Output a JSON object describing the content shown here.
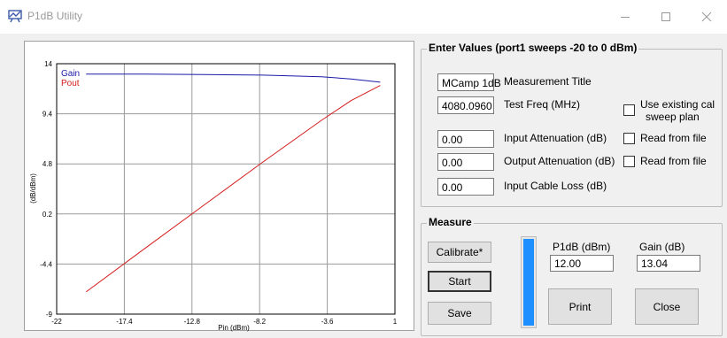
{
  "window": {
    "title": "P1dB Utility",
    "icons": {
      "app": "chart-app-icon",
      "minimize": "minimize-icon",
      "maximize": "maximize-icon",
      "close": "close-icon"
    }
  },
  "chart_data": {
    "type": "line",
    "title": "",
    "xlabel": "Pin (dBm)",
    "ylabel": "(dB/dBm)",
    "xlim": [
      -22,
      1
    ],
    "ylim": [
      -9,
      14
    ],
    "x_ticks": [
      "-22",
      "-17.4",
      "-12.8",
      "-8.2",
      "-3.6",
      "1"
    ],
    "y_ticks": [
      "14",
      "9.4",
      "4.8",
      "0.2",
      "-4.4",
      "-9"
    ],
    "grid": true,
    "legend_position": "top-left",
    "series": [
      {
        "name": "Gain",
        "color": "#1a1aa8",
        "x": [
          -20,
          -16,
          -12,
          -8,
          -4,
          -2,
          0
        ],
        "y": [
          13.04,
          13.04,
          13.0,
          12.95,
          12.8,
          12.6,
          12.3
        ]
      },
      {
        "name": "Pout",
        "color": "#d41c1c",
        "x": [
          -20,
          -16,
          -12,
          -8,
          -4,
          -2,
          0
        ],
        "y": [
          -6.96,
          -2.96,
          1.0,
          4.95,
          8.8,
          10.6,
          12.0
        ]
      }
    ]
  },
  "enter_values": {
    "title": "Enter Values (port1 sweeps -20 to 0 dBm)",
    "fields": [
      {
        "value": "MCamp 1dB",
        "label": "Measurement Title"
      },
      {
        "value": "4080.0960",
        "label": "Test Freq (MHz)"
      },
      {
        "value": "0.00",
        "label": "Input Attenuation (dB)"
      },
      {
        "value": "0.00",
        "label": "Output Attenuation (dB)"
      },
      {
        "value": "0.00",
        "label": "Input Cable Loss (dB)"
      }
    ],
    "checkboxes": [
      {
        "label_line1": "Use existing cal",
        "label_line2": "sweep plan"
      },
      {
        "label": "Read from file"
      },
      {
        "label": "Read from file"
      }
    ]
  },
  "measure": {
    "title": "Measure",
    "calibrate_label": "Calibrate*",
    "start_label": "Start",
    "save_label": "Save",
    "progress": 1.0,
    "p1db_label": "P1dB (dBm)",
    "p1db_value": "12.00",
    "gain_label": "Gain (dB)",
    "gain_value": "13.04",
    "print_label": "Print",
    "close_label": "Close"
  }
}
